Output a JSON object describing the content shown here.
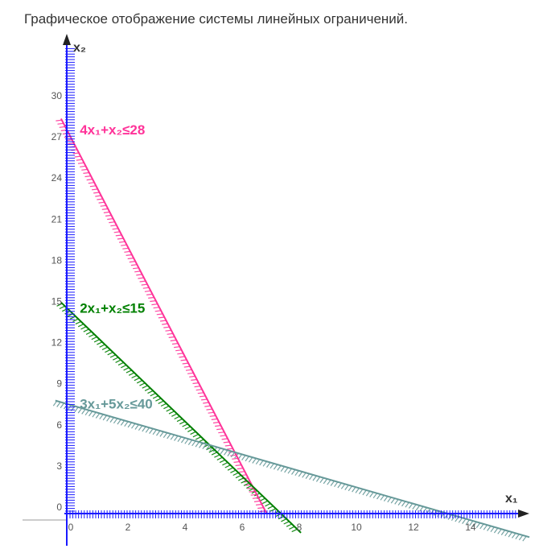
{
  "page": {
    "title": "Графическое отображение системы линейных ограничений."
  },
  "chart_data": {
    "type": "line",
    "title": "Графическое отображение системы линейных ограничений.",
    "xlabel": "x₁",
    "ylabel": "x₂",
    "xlim": [
      -1.6,
      16.4
    ],
    "ylim": [
      -1.6,
      34.8
    ],
    "x_ticks": [
      0,
      2,
      4,
      6,
      8,
      10,
      12,
      14
    ],
    "y_ticks": [
      0,
      3,
      6,
      9,
      12,
      15,
      18,
      21,
      24,
      27,
      30
    ],
    "axis_color": "#1a1aff",
    "series": [
      {
        "name": "4x₁+x₂≤28",
        "a": 4,
        "b": 1,
        "c": 28,
        "x": [
          -0.2,
          7.0
        ],
        "y": [
          28.8,
          0.0
        ],
        "color": "#ff3399",
        "label_at": [
          0.4,
          28
        ]
      },
      {
        "name": "2x₁+x₂≤15",
        "a": 2,
        "b": 1,
        "c": 15,
        "x": [
          -0.2,
          8.2
        ],
        "y": [
          15.4,
          -1.4
        ],
        "color": "#008000",
        "label_at": [
          0.4,
          15
        ]
      },
      {
        "name": "3x₁+5x₂≤40",
        "a": 3,
        "b": 5,
        "c": 40,
        "x": [
          -0.4,
          16.2
        ],
        "y": [
          8.24,
          -1.72
        ],
        "color": "#669999",
        "label_at": [
          0.4,
          8
        ]
      }
    ]
  }
}
